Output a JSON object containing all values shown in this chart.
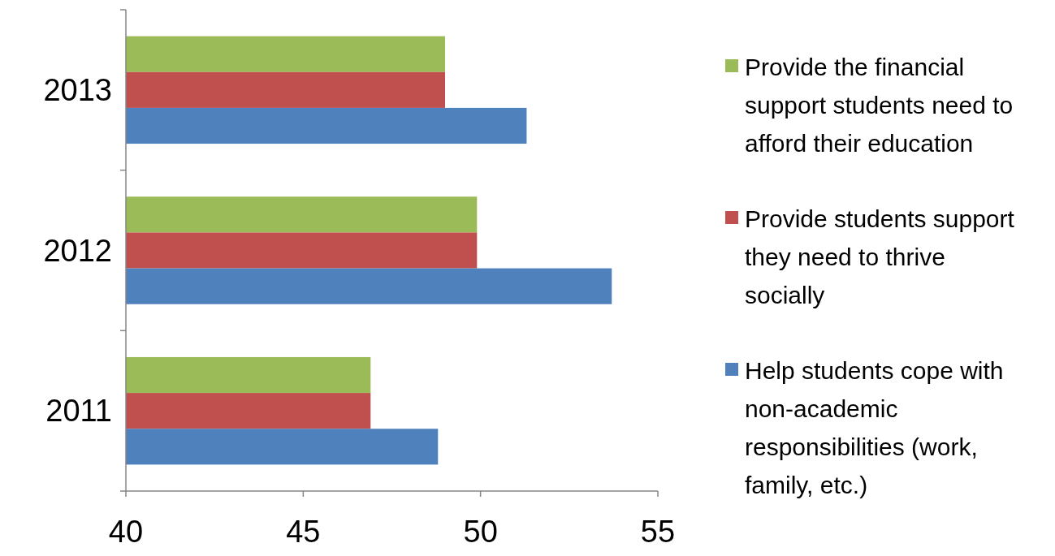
{
  "chart_data": {
    "type": "bar",
    "orientation": "horizontal",
    "categories": [
      "2013",
      "2012",
      "2011"
    ],
    "series": [
      {
        "name": "Provide the financial support students need to afford their education",
        "color": "#9bbb59",
        "values": [
          49.0,
          49.9,
          46.9
        ]
      },
      {
        "name": "Provide students support they need to thrive socially",
        "color": "#c0504d",
        "values": [
          49.0,
          49.9,
          46.9
        ]
      },
      {
        "name": "Help students cope with non-academic responsibilities (work, family, etc.)",
        "color": "#4f81bd",
        "values": [
          51.3,
          53.7,
          48.8
        ]
      }
    ],
    "xlim": [
      40,
      55
    ],
    "xticks": [
      40,
      45,
      50,
      55
    ],
    "grid": false,
    "legend": "right"
  }
}
